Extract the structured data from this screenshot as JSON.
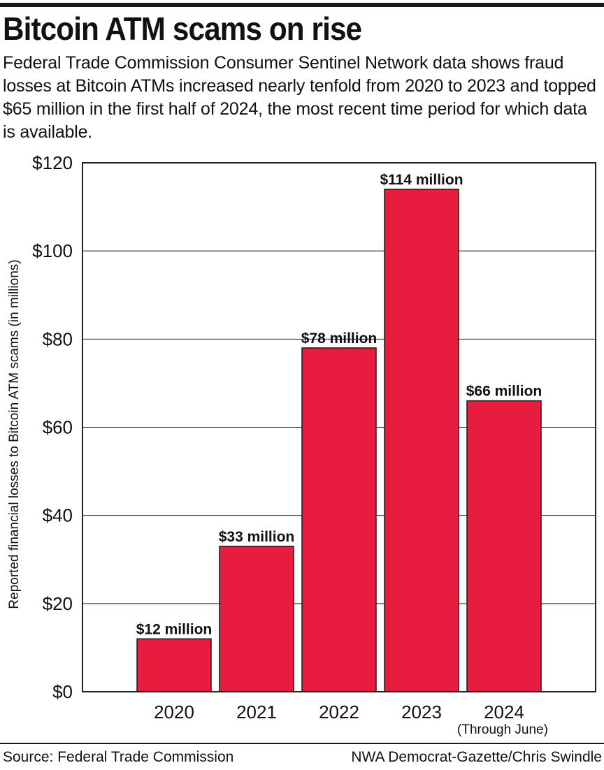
{
  "header": {
    "title": "Bitcoin ATM scams on rise",
    "subtitle": "Federal Trade Commission Consumer Sentinel Network data shows fraud losses at Bitcoin ATMs increased nearly tenfold from 2020 to 2023 and topped $65 million in the first half of 2024, the most recent time period for which data is available."
  },
  "footer": {
    "source": "Source: Federal Trade Commission",
    "credit": "NWA Democrat-Gazette/Chris Swindle"
  },
  "colors": {
    "bar": "#e81c3f",
    "grid": "#222222",
    "rule": "#1a1a1a"
  },
  "chart_data": {
    "type": "bar",
    "categories": [
      "2020",
      "2021",
      "2022",
      "2023",
      "2024"
    ],
    "category_sublabels": [
      "",
      "",
      "",
      "",
      "(Through June)"
    ],
    "values": [
      12,
      33,
      78,
      114,
      66
    ],
    "data_labels": [
      "$12 million",
      "$33 million",
      "$78 million",
      "$114 million",
      "$66 million"
    ],
    "ylabel": "Reported financial losses to Bitcoin ATM scams (in millions)",
    "ylim": [
      0,
      120
    ],
    "yticks": [
      0,
      20,
      40,
      60,
      80,
      100,
      120
    ],
    "ytick_labels": [
      "$0",
      "$20",
      "$40",
      "$60",
      "$80",
      "$100",
      "$120"
    ],
    "grid": true
  }
}
